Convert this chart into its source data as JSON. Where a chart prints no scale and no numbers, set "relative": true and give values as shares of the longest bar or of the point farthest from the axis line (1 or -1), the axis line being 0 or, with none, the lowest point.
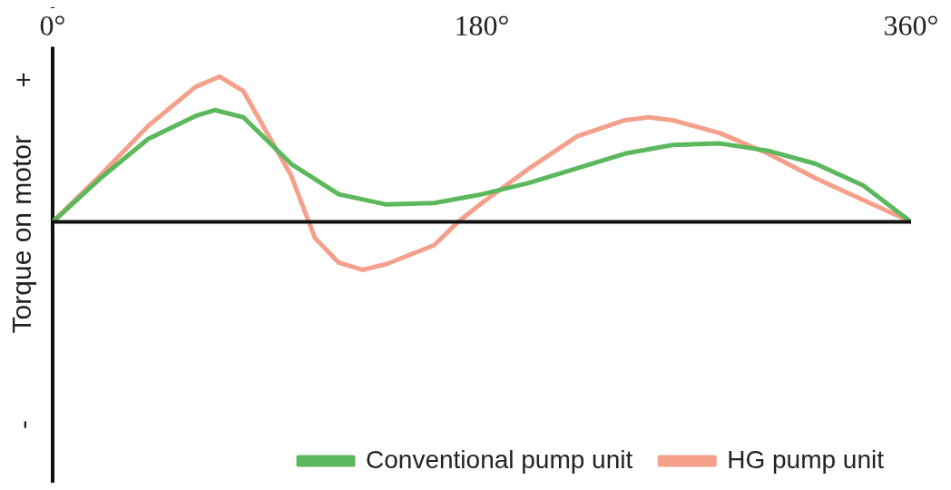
{
  "chart_data": {
    "type": "line",
    "relative": true,
    "ylabel": "Torque on motor",
    "annotations": [
      "+",
      "-"
    ],
    "xlim": [
      0,
      360
    ],
    "xticks": [
      {
        "value": 0,
        "label": "0°"
      },
      {
        "value": 180,
        "label": "180°"
      },
      {
        "value": 360,
        "label": "360°"
      }
    ],
    "legend": "bottom right",
    "grid": false,
    "marker": "none",
    "line_style": "solid",
    "series": [
      {
        "name": "Conventional pump unit",
        "color": "#5cb85c",
        "x": [
          0,
          20,
          40,
          60,
          68,
          80,
          100,
          120,
          140,
          160,
          180,
          200,
          220,
          240,
          260,
          280,
          300,
          320,
          340,
          360
        ],
        "values": [
          0,
          0.3,
          0.57,
          0.73,
          0.77,
          0.72,
          0.4,
          0.19,
          0.12,
          0.13,
          0.19,
          0.27,
          0.37,
          0.47,
          0.53,
          0.54,
          0.49,
          0.4,
          0.25,
          0
        ]
      },
      {
        "name": "HG pump unit",
        "color": "#f4a08a",
        "x": [
          0,
          20,
          40,
          60,
          70,
          80,
          100,
          110,
          120,
          130,
          140,
          160,
          170,
          180,
          200,
          220,
          240,
          250,
          260,
          280,
          300,
          320,
          340,
          360
        ],
        "values": [
          0,
          0.32,
          0.66,
          0.93,
          1,
          0.9,
          0.32,
          -0.11,
          -0.28,
          -0.33,
          -0.29,
          -0.16,
          0,
          0.13,
          0.37,
          0.59,
          0.7,
          0.72,
          0.7,
          0.61,
          0.47,
          0.3,
          0.15,
          0
        ]
      }
    ]
  }
}
